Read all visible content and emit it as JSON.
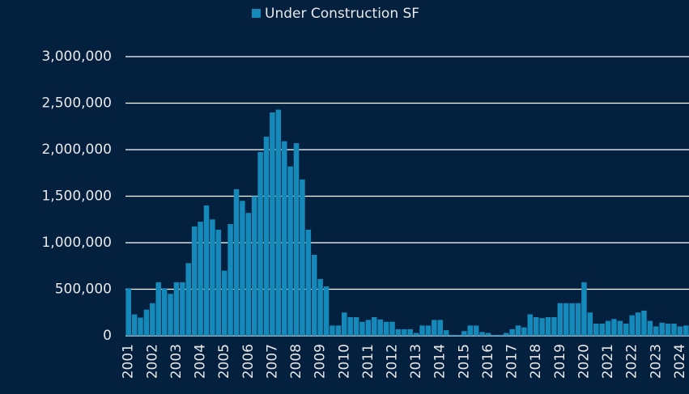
{
  "chart_data": {
    "type": "bar",
    "legend": "top",
    "series": [
      {
        "name": "Under Construction SF",
        "color": "#1589ba",
        "values": [
          510000,
          230000,
          195000,
          280000,
          350000,
          575000,
          510000,
          450000,
          575000,
          575000,
          780000,
          1175000,
          1225000,
          1400000,
          1250000,
          1140000,
          700000,
          1200000,
          1575000,
          1450000,
          1320000,
          1500000,
          1975000,
          2140000,
          2400000,
          2430000,
          2090000,
          1820000,
          2070000,
          1680000,
          1140000,
          870000,
          610000,
          530000,
          110000,
          110000,
          250000,
          200000,
          200000,
          150000,
          170000,
          200000,
          175000,
          150000,
          150000,
          70000,
          70000,
          70000,
          30000,
          110000,
          110000,
          170000,
          170000,
          60000,
          10000,
          10000,
          50000,
          110000,
          110000,
          40000,
          30000,
          10000,
          10000,
          30000,
          70000,
          110000,
          90000,
          230000,
          200000,
          190000,
          200000,
          200000,
          350000,
          350000,
          350000,
          350000,
          575000,
          250000,
          130000,
          130000,
          160000,
          180000,
          160000,
          130000,
          220000,
          250000,
          270000,
          160000,
          100000,
          140000,
          130000,
          130000,
          100000,
          110000
        ]
      }
    ],
    "categories": [
      "2001",
      null,
      null,
      null,
      "2002",
      null,
      null,
      null,
      "2003",
      null,
      null,
      null,
      "2004",
      null,
      null,
      null,
      "2005",
      null,
      null,
      null,
      "2006",
      null,
      null,
      null,
      "2007",
      null,
      null,
      null,
      "2008",
      null,
      null,
      null,
      "2009",
      null,
      null,
      null,
      "2010",
      null,
      null,
      null,
      "2011",
      null,
      null,
      null,
      "2012",
      null,
      null,
      null,
      "2013",
      null,
      null,
      null,
      "2014",
      null,
      null,
      null,
      "2015",
      null,
      null,
      null,
      "2016",
      null,
      null,
      null,
      "2017",
      null,
      null,
      null,
      "2018",
      null,
      null,
      null,
      "2019",
      null,
      null,
      null,
      "2020",
      null,
      null,
      null,
      "2021",
      null,
      null,
      null,
      "2022",
      null,
      null,
      null,
      "2023",
      null,
      null,
      null,
      "2024",
      null
    ],
    "ylim": [
      0,
      3000000
    ],
    "yticks": [
      0,
      {
        "value": 500000,
        "label": "500,000"
      },
      {
        "value": 1000000,
        "label": "1,000,000"
      },
      {
        "value": 1500000,
        "label": "1,500,000"
      },
      {
        "value": 2000000,
        "label": "2,000,000"
      },
      {
        "value": 2500000,
        "label": "2,500,000"
      },
      {
        "value": 3000000,
        "label": "3,000,000"
      }
    ],
    "grid": true
  }
}
